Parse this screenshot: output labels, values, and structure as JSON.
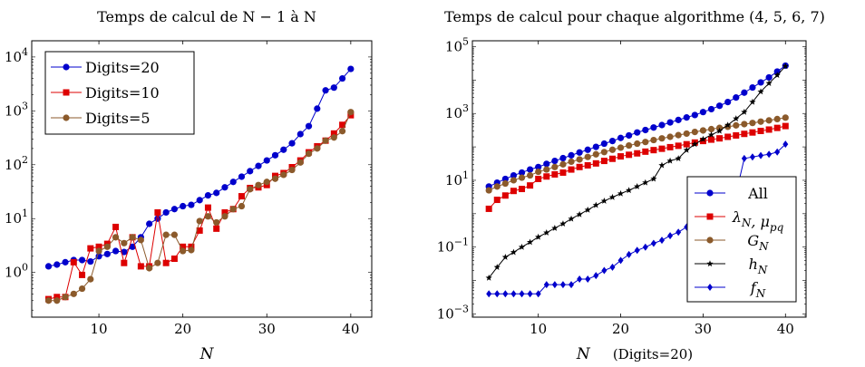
{
  "chart_data": [
    {
      "type": "line",
      "title": "Temps de calcul de N − 1 à N",
      "xlabel": "N",
      "ylabel": "",
      "xlim": [
        2,
        42.5
      ],
      "ylim": [
        0.148,
        20000
      ],
      "yscale": "log",
      "xticks": [
        "10",
        "20",
        "30",
        "40"
      ],
      "yticks": [
        "10^0",
        "10^1",
        "10^2",
        "10^3",
        "10^4"
      ],
      "grid": false,
      "legend_position": "top-left",
      "series": [
        {
          "name": "Digits=20",
          "color": "#0000cc",
          "marker": "circle",
          "x": [
            4,
            5,
            6,
            7,
            8,
            9,
            10,
            11,
            12,
            13,
            14,
            15,
            16,
            17,
            18,
            19,
            20,
            21,
            22,
            23,
            24,
            25,
            26,
            27,
            28,
            29,
            30,
            31,
            32,
            33,
            34,
            35,
            36,
            37,
            38,
            39,
            40
          ],
          "y": [
            1.3,
            1.4,
            1.55,
            1.7,
            1.7,
            1.6,
            2.0,
            2.2,
            2.5,
            2.4,
            3.0,
            4.5,
            8.0,
            10.0,
            13.0,
            15.0,
            17.0,
            18.0,
            22.0,
            27.0,
            30.0,
            38.0,
            48.0,
            60.0,
            76.0,
            95.0,
            120.0,
            150.0,
            190.0,
            250.0,
            370.0,
            520.0,
            1100.0,
            2400.0,
            2700.0,
            4000.0,
            6000.0
          ]
        },
        {
          "name": "Digits=10",
          "color": "#dd0000",
          "marker": "square",
          "x": [
            4,
            5,
            6,
            7,
            8,
            9,
            10,
            11,
            12,
            13,
            14,
            15,
            16,
            17,
            18,
            19,
            20,
            21,
            22,
            23,
            24,
            25,
            26,
            27,
            28,
            29,
            30,
            31,
            32,
            33,
            34,
            35,
            36,
            37,
            38,
            39,
            40
          ],
          "y": [
            0.32,
            0.35,
            0.35,
            1.55,
            0.9,
            2.8,
            3.0,
            3.4,
            7.0,
            1.5,
            4.5,
            1.3,
            1.3,
            13.0,
            1.5,
            1.8,
            3.0,
            3.0,
            6.0,
            16.0,
            6.5,
            13.0,
            15.0,
            26.0,
            37.0,
            38.0,
            42.0,
            62.0,
            70.0,
            90.0,
            120.0,
            170.0,
            220.0,
            280.0,
            380.0,
            550.0,
            830.0
          ]
        },
        {
          "name": "Digits=5",
          "color": "#8b5a2b",
          "marker": "circle",
          "x": [
            4,
            5,
            6,
            7,
            8,
            9,
            10,
            11,
            12,
            13,
            14,
            15,
            16,
            17,
            18,
            19,
            20,
            21,
            22,
            23,
            24,
            25,
            26,
            27,
            28,
            29,
            30,
            31,
            32,
            33,
            34,
            35,
            36,
            37,
            38,
            39,
            40
          ],
          "y": [
            0.3,
            0.3,
            0.35,
            0.4,
            0.5,
            0.75,
            2.5,
            3.0,
            4.5,
            3.5,
            4.5,
            4.0,
            1.2,
            1.5,
            5.0,
            5.0,
            2.5,
            2.6,
            9.0,
            11.0,
            8.5,
            11.0,
            15.0,
            17.0,
            35.0,
            42.0,
            48.0,
            55.0,
            65.0,
            80.0,
            110.0,
            160.0,
            200.0,
            280.0,
            320.0,
            420.0,
            950.0
          ]
        }
      ]
    },
    {
      "type": "line",
      "title": "Temps de calcul pour chaque algorithme (4, 5, 6, 7)",
      "xlabel": "N",
      "xlabel_note": "(Digits=20)",
      "ylabel": "",
      "xlim": [
        2,
        42.5
      ],
      "ylim": [
        0.0008,
        150000
      ],
      "yscale": "log",
      "xticks": [
        "10",
        "20",
        "30",
        "40"
      ],
      "yticks": [
        "10^5",
        "10^3",
        "10^1",
        "10^-1",
        "10^-3"
      ],
      "grid": false,
      "legend_position": "bottom-right",
      "series": [
        {
          "name": "All",
          "color": "#0000cc",
          "marker": "circle",
          "x": [
            4,
            5,
            6,
            7,
            8,
            9,
            10,
            11,
            12,
            13,
            14,
            15,
            16,
            17,
            18,
            19,
            20,
            21,
            22,
            23,
            24,
            25,
            26,
            27,
            28,
            29,
            30,
            31,
            32,
            33,
            34,
            35,
            36,
            37,
            38,
            39,
            40
          ],
          "y": [
            6.5,
            8.5,
            11.0,
            14.0,
            17.0,
            21.0,
            25.0,
            31.0,
            38.0,
            46.0,
            56.0,
            68.0,
            82.0,
            100.0,
            125.0,
            150.0,
            185.0,
            220.0,
            270.0,
            320.0,
            380.0,
            450.0,
            540.0,
            640.0,
            760.0,
            900.0,
            1100.0,
            1350.0,
            1700.0,
            2200.0,
            3000.0,
            4200.0,
            6000.0,
            8500.0,
            12000.0,
            18000.0,
            27000.0
          ]
        },
        {
          "name": "λ_N, μ_pq",
          "color": "#dd0000",
          "marker": "square",
          "x": [
            4,
            5,
            6,
            7,
            8,
            9,
            10,
            11,
            12,
            13,
            14,
            15,
            16,
            17,
            18,
            19,
            20,
            21,
            22,
            23,
            24,
            25,
            26,
            27,
            28,
            29,
            30,
            31,
            32,
            33,
            34,
            35,
            36,
            37,
            38,
            39,
            40
          ],
          "y": [
            1.4,
            2.6,
            3.5,
            4.8,
            5.5,
            7.0,
            11.0,
            13.0,
            15.0,
            17.0,
            21.0,
            25.0,
            28.0,
            32.0,
            38.0,
            44.0,
            52.0,
            58.0,
            64.0,
            72.0,
            80.0,
            88.0,
            98.0,
            108.0,
            120.0,
            135.0,
            150.0,
            165.0,
            180.0,
            200.0,
            220.0,
            245.0,
            270.0,
            300.0,
            330.0,
            370.0,
            420.0
          ]
        },
        {
          "name": "G_N",
          "color": "#8b5a2b",
          "marker": "circle",
          "x": [
            4,
            5,
            6,
            7,
            8,
            9,
            10,
            11,
            12,
            13,
            14,
            15,
            16,
            17,
            18,
            19,
            20,
            21,
            22,
            23,
            24,
            25,
            26,
            27,
            28,
            29,
            30,
            31,
            32,
            33,
            34,
            35,
            36,
            37,
            38,
            39,
            40
          ],
          "y": [
            5.0,
            6.5,
            8.0,
            10.0,
            12.0,
            14.0,
            18.0,
            21.0,
            25.0,
            30.0,
            36.0,
            42.0,
            50.0,
            60.0,
            70.0,
            82.0,
            95.0,
            110.0,
            125.0,
            140.0,
            160.0,
            180.0,
            200.0,
            225.0,
            250.0,
            280.0,
            310.0,
            340.0,
            370.0,
            400.0,
            440.0,
            480.0,
            520.0,
            570.0,
            620.0,
            680.0,
            750.0
          ]
        },
        {
          "name": "h_N",
          "color": "#000000",
          "marker": "star",
          "x": [
            4,
            5,
            6,
            7,
            8,
            9,
            10,
            11,
            12,
            13,
            14,
            15,
            16,
            17,
            18,
            19,
            20,
            21,
            22,
            23,
            24,
            25,
            26,
            27,
            28,
            29,
            30,
            31,
            32,
            33,
            34,
            35,
            36,
            37,
            38,
            39,
            40
          ],
          "y": [
            0.012,
            0.025,
            0.05,
            0.07,
            0.1,
            0.14,
            0.2,
            0.27,
            0.37,
            0.5,
            0.7,
            0.95,
            1.3,
            1.8,
            2.4,
            3.1,
            4.0,
            5.0,
            6.5,
            8.5,
            11.0,
            28.0,
            38.0,
            45.0,
            80.0,
            120.0,
            170.0,
            230.0,
            300.0,
            450.0,
            700.0,
            1100.0,
            2200.0,
            4500.0,
            8000.0,
            14000.0,
            26000.0
          ]
        },
        {
          "name": "f_N",
          "color": "#0000cc",
          "marker": "diamond",
          "x": [
            4,
            5,
            6,
            7,
            8,
            9,
            10,
            11,
            12,
            13,
            14,
            15,
            16,
            17,
            18,
            19,
            20,
            21,
            22,
            23,
            24,
            25,
            26,
            27,
            28,
            29,
            30,
            31,
            32,
            33,
            34,
            35,
            36,
            37,
            38,
            39,
            40
          ],
          "y": [
            0.004,
            0.004,
            0.004,
            0.004,
            0.004,
            0.004,
            0.004,
            0.0075,
            0.0075,
            0.0075,
            0.0075,
            0.011,
            0.011,
            0.014,
            0.02,
            0.025,
            0.04,
            0.06,
            0.08,
            0.1,
            0.13,
            0.16,
            0.22,
            0.28,
            0.4,
            0.55,
            0.7,
            1.0,
            1.4,
            2.0,
            4.0,
            45.0,
            50.0,
            55.0,
            60.0,
            70.0,
            120.0
          ]
        }
      ]
    }
  ]
}
